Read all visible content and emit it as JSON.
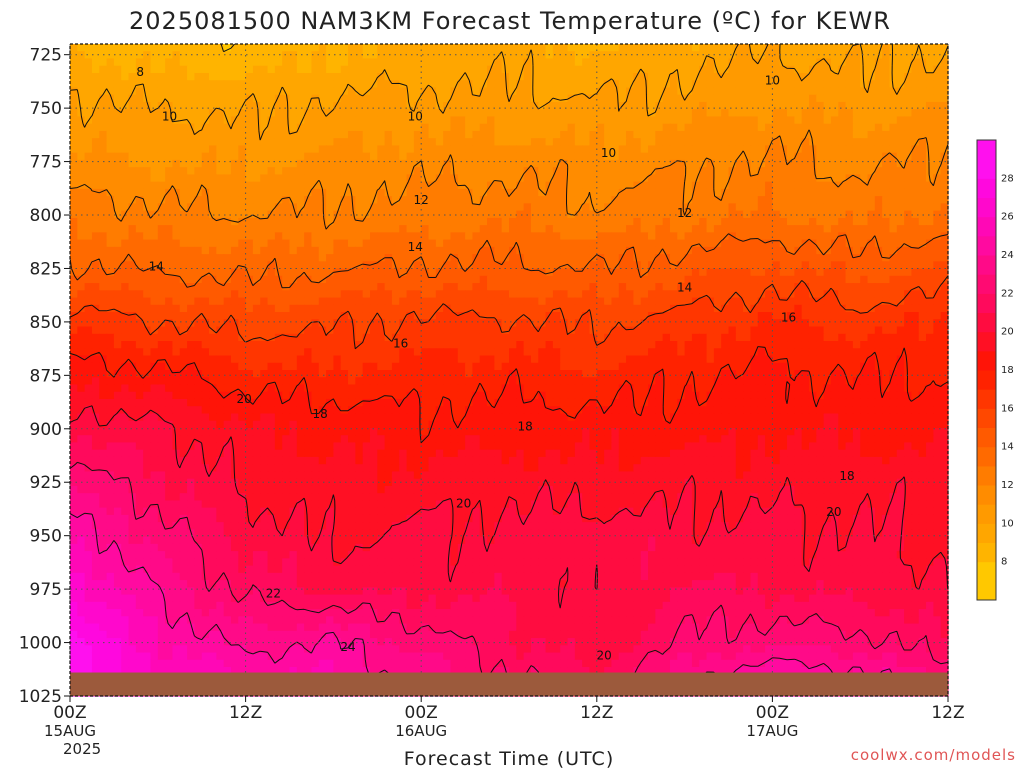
{
  "colors": {
    "ground": "#9c5a3c",
    "grid": "#555555",
    "credit": "#e05555",
    "bands": {
      "7": "#ffc800",
      "8": "#ffb400",
      "9": "#ffa600",
      "10": "#ff9a00",
      "11": "#ff8c00",
      "12": "#ff7c00",
      "13": "#ff6a00",
      "14": "#ff5a00",
      "15": "#ff4800",
      "16": "#ff3600",
      "17": "#ff2200",
      "18": "#ff1408",
      "19": "#ff1024",
      "20": "#ff0c40",
      "21": "#ff0a5c",
      "22": "#ff0a72",
      "23": "#ff0a88",
      "24": "#ff0aa0",
      "25": "#ff08b6",
      "26": "#ff08cc",
      "27": "#ff08de",
      "28": "#ff10ee"
    }
  },
  "chart_data": {
    "type": "heatmap",
    "title": "2025081500 NAM3KM Forecast Temperature (ºC) for KEWR",
    "xlabel": "Forecast Time (UTC)",
    "credit": "coolwx.com/models",
    "x_hours": [
      0,
      6,
      12,
      18,
      24,
      30,
      36,
      42,
      48,
      54,
      60
    ],
    "x_ticks": [
      {
        "hour": 0,
        "label": "00Z",
        "sub1": "15AUG",
        "sub2": "2025"
      },
      {
        "hour": 12,
        "label": "12Z",
        "sub1": "",
        "sub2": ""
      },
      {
        "hour": 24,
        "label": "00Z",
        "sub1": "16AUG",
        "sub2": ""
      },
      {
        "hour": 36,
        "label": "12Z",
        "sub1": "",
        "sub2": ""
      },
      {
        "hour": 48,
        "label": "00Z",
        "sub1": "17AUG",
        "sub2": ""
      },
      {
        "hour": 60,
        "label": "12Z",
        "sub1": "",
        "sub2": ""
      }
    ],
    "y_ticks": [
      "725",
      "750",
      "775",
      "800",
      "825",
      "850",
      "875",
      "900",
      "925",
      "950",
      "975",
      "1000",
      "1025"
    ],
    "y_tick_values": [
      725,
      750,
      775,
      800,
      825,
      850,
      875,
      900,
      925,
      950,
      975,
      1000,
      1025
    ],
    "xlim": [
      0,
      60
    ],
    "ylim": [
      1025,
      720
    ],
    "grid": true,
    "surface_pressure_hpa": 1014,
    "levels_hpa": [
      720,
      750,
      775,
      800,
      825,
      850,
      875,
      900,
      925,
      950,
      975,
      1000,
      1025
    ],
    "temperature_c": [
      [
        8.8,
        8.4,
        8.2,
        8.8,
        9.2,
        9.4,
        8.8,
        9.4,
        9.8,
        9.6,
        9.8
      ],
      [
        10.3,
        10.0,
        9.8,
        10.2,
        10.4,
        10.4,
        10.2,
        10.6,
        11.0,
        10.6,
        11.0
      ],
      [
        11.2,
        10.9,
        10.8,
        11.2,
        11.6,
        11.6,
        11.4,
        11.8,
        12.2,
        11.8,
        12.2
      ],
      [
        12.6,
        12.3,
        12.0,
        12.2,
        12.4,
        12.8,
        12.2,
        12.6,
        13.0,
        12.6,
        13.2
      ],
      [
        14.2,
        13.8,
        13.6,
        13.8,
        14.2,
        14.2,
        14.0,
        14.6,
        15.2,
        14.6,
        15.2
      ],
      [
        16.6,
        16.0,
        15.6,
        15.8,
        16.2,
        16.2,
        15.8,
        16.4,
        17.2,
        16.6,
        17.0
      ],
      [
        18.6,
        18.4,
        17.4,
        17.2,
        17.4,
        17.6,
        17.2,
        17.8,
        18.2,
        18.0,
        18.0
      ],
      [
        20.8,
        20.2,
        19.2,
        18.8,
        18.4,
        18.6,
        18.6,
        18.6,
        18.8,
        18.8,
        18.6
      ],
      [
        22.8,
        21.2,
        19.8,
        19.2,
        19.4,
        19.6,
        19.4,
        19.6,
        19.6,
        19.6,
        19.4
      ],
      [
        24.8,
        22.6,
        20.6,
        19.8,
        20.2,
        20.4,
        20.6,
        20.4,
        20.2,
        20.2,
        19.8
      ],
      [
        26.6,
        23.8,
        21.6,
        20.8,
        20.6,
        20.8,
        20.2,
        21.2,
        20.8,
        20.6,
        20.2
      ],
      [
        28.6,
        25.2,
        23.6,
        24.2,
        22.6,
        21.2,
        20.2,
        22.2,
        22.8,
        22.4,
        21.2
      ],
      [
        29.0,
        26.6,
        25.8,
        25.4,
        24.4,
        22.6,
        21.8,
        24.6,
        26.2,
        25.4,
        23.6
      ]
    ],
    "contour_levels": [
      8,
      10,
      12,
      14,
      16,
      18,
      20,
      22,
      24
    ],
    "contour_labels": [
      {
        "text": "8",
        "hour": 4.8,
        "hpa": 733
      },
      {
        "text": "10",
        "hour": 6.8,
        "hpa": 754
      },
      {
        "text": "10",
        "hour": 23.6,
        "hpa": 754
      },
      {
        "text": "10",
        "hour": 36.8,
        "hpa": 771
      },
      {
        "text": "10",
        "hour": 48.0,
        "hpa": 737
      },
      {
        "text": "12",
        "hour": 24.0,
        "hpa": 793
      },
      {
        "text": "12",
        "hour": 42.0,
        "hpa": 799
      },
      {
        "text": "14",
        "hour": 5.9,
        "hpa": 824
      },
      {
        "text": "14",
        "hour": 23.6,
        "hpa": 815
      },
      {
        "text": "14",
        "hour": 42.0,
        "hpa": 834
      },
      {
        "text": "16",
        "hour": 22.6,
        "hpa": 860
      },
      {
        "text": "16",
        "hour": 49.1,
        "hpa": 848
      },
      {
        "text": "18",
        "hour": 17.1,
        "hpa": 893
      },
      {
        "text": "18",
        "hour": 31.1,
        "hpa": 899
      },
      {
        "text": "18",
        "hour": 53.1,
        "hpa": 922
      },
      {
        "text": "20",
        "hour": 11.9,
        "hpa": 886
      },
      {
        "text": "20",
        "hour": 26.9,
        "hpa": 935
      },
      {
        "text": "20",
        "hour": 52.2,
        "hpa": 939
      },
      {
        "text": "20",
        "hour": 36.5,
        "hpa": 1006
      },
      {
        "text": "22",
        "hour": 13.9,
        "hpa": 977
      },
      {
        "text": "24",
        "hour": 19.0,
        "hpa": 1002
      }
    ],
    "colorbar": {
      "min": 6,
      "max": 30,
      "ticks": [
        8,
        10,
        12,
        14,
        16,
        18,
        20,
        22,
        24,
        26,
        28
      ],
      "tick_labels": [
        "8",
        "10",
        "12",
        "14",
        "16",
        "18",
        "20",
        "22",
        "24",
        "26",
        "28"
      ]
    }
  }
}
